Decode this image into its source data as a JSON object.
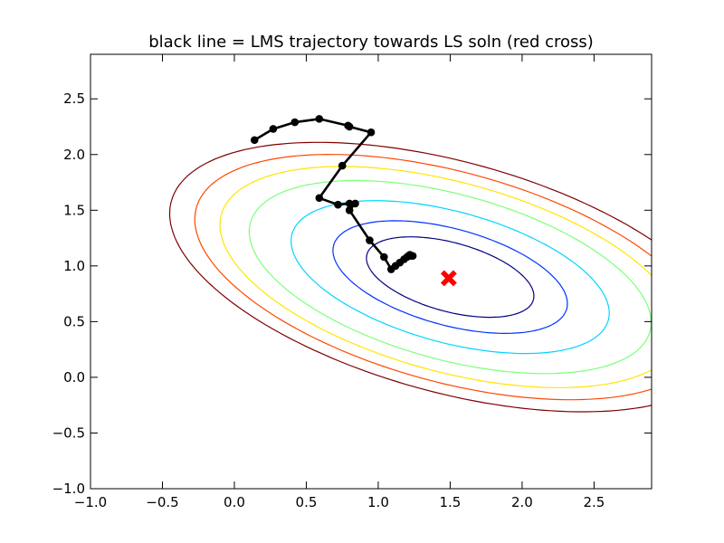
{
  "chart_data": {
    "type": "line",
    "title": "black line = LMS trajectory towards LS soln (red cross)",
    "xlabel": "",
    "ylabel": "",
    "xlim": [
      -1.0,
      2.9
    ],
    "ylim": [
      -1.0,
      2.9
    ],
    "xticks": [
      -1.0,
      -0.5,
      0.0,
      0.5,
      1.0,
      1.5,
      2.0,
      2.5
    ],
    "yticks": [
      -1.0,
      -0.5,
      0.0,
      0.5,
      1.0,
      1.5,
      2.0,
      2.5
    ],
    "xtick_labels": [
      "−1.0",
      "−0.5",
      "0.0",
      "0.5",
      "1.0",
      "1.5",
      "2.0",
      "2.5"
    ],
    "ytick_labels": [
      "−1.0",
      "−0.5",
      "0.0",
      "0.5",
      "1.0",
      "1.5",
      "2.0",
      "2.5"
    ],
    "grid": false,
    "contours": {
      "center": [
        1.5,
        0.9
      ],
      "levels": [
        {
          "color": "#00007f",
          "k": 1.0
        },
        {
          "color": "#0033ff",
          "k": 1.4
        },
        {
          "color": "#00d4ff",
          "k": 1.9
        },
        {
          "color": "#7dff7a",
          "k": 2.4
        },
        {
          "color": "#ffe500",
          "k": 2.75
        },
        {
          "color": "#ff4800",
          "k": 3.05
        },
        {
          "color": "#7f0000",
          "k": 3.35
        }
      ]
    },
    "series": [
      {
        "color": "#000000",
        "x": [
          0.14,
          0.27,
          0.42,
          0.59,
          0.79,
          0.8,
          0.95,
          0.75,
          0.59,
          0.72,
          0.8,
          0.84,
          0.8,
          0.94,
          1.04,
          1.09,
          1.12,
          1.15,
          1.18,
          1.2,
          1.21,
          1.22,
          1.23,
          1.24
        ],
        "y": [
          2.13,
          2.23,
          2.29,
          2.32,
          2.26,
          2.25,
          2.2,
          1.9,
          1.61,
          1.55,
          1.56,
          1.56,
          1.5,
          1.23,
          1.08,
          0.97,
          1.0,
          1.03,
          1.06,
          1.08,
          1.09,
          1.1,
          1.09,
          1.09
        ]
      }
    ],
    "ls_solution": {
      "x": 1.49,
      "y": 0.89,
      "color": "#ff0000",
      "marker": "X"
    }
  }
}
